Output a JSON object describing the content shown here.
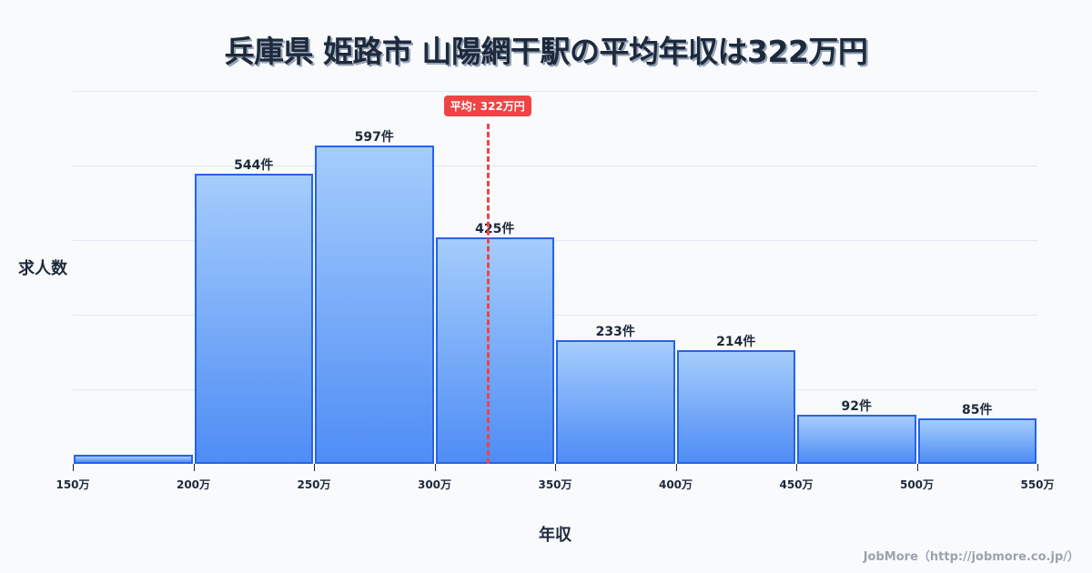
{
  "title": "兵庫県 姫路市 山陽網干駅の平均年収は322万円",
  "axis": {
    "ylabel": "求人数",
    "xlabel": "年収"
  },
  "mean": {
    "label": "平均: 322万円",
    "value": 322,
    "color": "#ef4444"
  },
  "footer": "JobMore（http://jobmore.co.jp/）",
  "colors": {
    "bar_border": "#2563eb",
    "bar_top": "#a5cdfc",
    "bar_bottom": "#4f8df5",
    "text": "#1e293b",
    "grid": "#e2e8f0"
  },
  "chart_data": {
    "type": "bar",
    "title": "兵庫県 姫路市 山陽網干駅の平均年収は322万円",
    "xlabel": "年収",
    "ylabel": "求人数",
    "bin_edges": [
      150,
      200,
      250,
      300,
      350,
      400,
      450,
      500,
      550
    ],
    "tick_labels": [
      "150万",
      "200万",
      "250万",
      "300万",
      "350万",
      "400万",
      "450万",
      "500万",
      "550万"
    ],
    "categories": [
      "150-200万",
      "200-250万",
      "250-300万",
      "300-350万",
      "350-400万",
      "400-450万",
      "450-500万",
      "500-550万"
    ],
    "values": [
      17,
      544,
      597,
      425,
      233,
      214,
      92,
      85
    ],
    "value_labels": [
      "",
      "544件",
      "597件",
      "425件",
      "233件",
      "214件",
      "92件",
      "85件"
    ],
    "xlim": [
      150,
      550
    ],
    "ylim": [
      0,
      700
    ],
    "grid": true,
    "annotations": [
      {
        "type": "vline",
        "x": 322,
        "label": "平均: 322万円",
        "style": "dashed",
        "color": "#ef4444"
      }
    ]
  }
}
